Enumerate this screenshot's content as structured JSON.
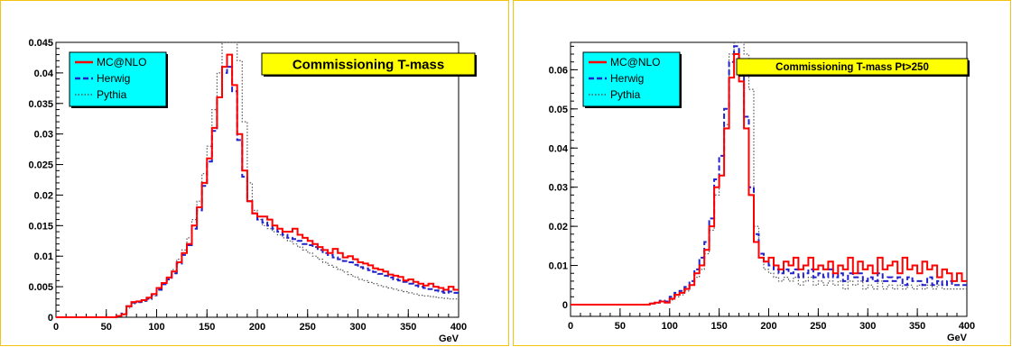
{
  "chart_data": [
    {
      "type": "line",
      "step": true,
      "title": "Commissioning T-mass",
      "xlabel": "GeV",
      "ylabel": "",
      "xlim": [
        0,
        400
      ],
      "ylim": [
        0,
        0.045
      ],
      "xticks": [
        "0",
        "50",
        "100",
        "150",
        "200",
        "250",
        "300",
        "350",
        "400"
      ],
      "yticks": [
        "0",
        "0.005",
        "0.01",
        "0.015",
        "0.02",
        "0.025",
        "0.03",
        "0.035",
        "0.04",
        "0.045"
      ],
      "legend_position": "top-left",
      "title_box_color": "#ffff00",
      "legend_box_color": "#00ffff",
      "x": [
        0,
        5,
        10,
        15,
        20,
        25,
        30,
        35,
        40,
        45,
        50,
        55,
        60,
        65,
        70,
        75,
        80,
        85,
        90,
        95,
        100,
        105,
        110,
        115,
        120,
        125,
        130,
        135,
        140,
        145,
        150,
        155,
        160,
        165,
        170,
        175,
        180,
        185,
        190,
        195,
        200,
        205,
        210,
        215,
        220,
        225,
        230,
        235,
        240,
        245,
        250,
        255,
        260,
        265,
        270,
        275,
        280,
        285,
        290,
        295,
        300,
        305,
        310,
        315,
        320,
        325,
        330,
        335,
        340,
        345,
        350,
        355,
        360,
        365,
        370,
        375,
        380,
        385,
        390,
        395
      ],
      "series": [
        {
          "name": "MC@NLO",
          "color": "#ff0000",
          "style": "solid",
          "values": [
            0,
            0,
            0,
            0,
            0,
            0,
            0,
            0,
            0,
            0,
            0,
            0,
            0.0002,
            0.0005,
            0.0018,
            0.0025,
            0.0026,
            0.0028,
            0.0032,
            0.0038,
            0.0048,
            0.0056,
            0.0065,
            0.0075,
            0.009,
            0.0105,
            0.012,
            0.015,
            0.018,
            0.022,
            0.026,
            0.031,
            0.036,
            0.041,
            0.043,
            0.038,
            0.03,
            0.024,
            0.019,
            0.017,
            0.0165,
            0.0165,
            0.016,
            0.015,
            0.0145,
            0.014,
            0.014,
            0.0145,
            0.0135,
            0.013,
            0.0125,
            0.012,
            0.0115,
            0.011,
            0.0105,
            0.0112,
            0.0105,
            0.0098,
            0.01,
            0.0095,
            0.009,
            0.0088,
            0.0085,
            0.008,
            0.0078,
            0.0075,
            0.007,
            0.0068,
            0.0066,
            0.006,
            0.0062,
            0.0058,
            0.0055,
            0.0052,
            0.0055,
            0.005,
            0.0048,
            0.0045,
            0.005,
            0.0045
          ]
        },
        {
          "name": "Herwig",
          "color": "#2222cc",
          "style": "dashed",
          "values": [
            0,
            0,
            0,
            0,
            0,
            0,
            0,
            0,
            0,
            0,
            0,
            0,
            0.0002,
            0.0006,
            0.0018,
            0.0024,
            0.0025,
            0.0027,
            0.003,
            0.0036,
            0.0045,
            0.0054,
            0.0062,
            0.0072,
            0.0088,
            0.0102,
            0.0118,
            0.0145,
            0.0175,
            0.0215,
            0.0255,
            0.0305,
            0.036,
            0.04,
            0.041,
            0.037,
            0.029,
            0.023,
            0.019,
            0.017,
            0.016,
            0.0155,
            0.015,
            0.0145,
            0.014,
            0.0135,
            0.013,
            0.0128,
            0.0125,
            0.012,
            0.0118,
            0.0115,
            0.011,
            0.0105,
            0.0102,
            0.0098,
            0.0095,
            0.0092,
            0.009,
            0.0086,
            0.0082,
            0.008,
            0.0077,
            0.0074,
            0.0071,
            0.0068,
            0.0065,
            0.0062,
            0.006,
            0.0058,
            0.0055,
            0.0052,
            0.005,
            0.0048,
            0.0046,
            0.0044,
            0.0042,
            0.004,
            0.0042,
            0.004
          ]
        },
        {
          "name": "Pythia",
          "color": "#555555",
          "style": "dotted",
          "values": [
            0,
            0,
            0,
            0,
            0,
            0,
            0,
            0,
            0,
            0,
            0,
            0,
            0.0002,
            0.0004,
            0.0015,
            0.0022,
            0.0024,
            0.0026,
            0.003,
            0.0035,
            0.0045,
            0.0055,
            0.0065,
            0.0078,
            0.0095,
            0.011,
            0.013,
            0.016,
            0.019,
            0.0235,
            0.028,
            0.034,
            0.04,
            0.046,
            0.047,
            0.046,
            0.042,
            0.032,
            0.022,
            0.0175,
            0.016,
            0.015,
            0.0145,
            0.014,
            0.0135,
            0.013,
            0.0125,
            0.012,
            0.0115,
            0.011,
            0.0105,
            0.01,
            0.0095,
            0.009,
            0.0085,
            0.0082,
            0.0078,
            0.0074,
            0.007,
            0.0066,
            0.0062,
            0.006,
            0.0057,
            0.0055,
            0.0052,
            0.005,
            0.0048,
            0.0046,
            0.0044,
            0.0042,
            0.004,
            0.0038,
            0.0036,
            0.0035,
            0.0034,
            0.0033,
            0.0032,
            0.0031,
            0.003,
            0.003
          ]
        }
      ]
    },
    {
      "type": "line",
      "step": true,
      "title": "Commissioning T-mass Pt>250",
      "xlabel": "GeV",
      "ylabel": "",
      "xlim": [
        0,
        400
      ],
      "ylim": [
        -0.003,
        0.067
      ],
      "xticks": [
        "0",
        "50",
        "100",
        "150",
        "200",
        "250",
        "300",
        "350",
        "400"
      ],
      "yticks": [
        "0",
        "0.01",
        "0.02",
        "0.03",
        "0.04",
        "0.05",
        "0.06"
      ],
      "legend_position": "top-left",
      "title_box_color": "#ffff00",
      "legend_box_color": "#00ffff",
      "x": [
        0,
        5,
        10,
        15,
        20,
        25,
        30,
        35,
        40,
        45,
        50,
        55,
        60,
        65,
        70,
        75,
        80,
        85,
        90,
        95,
        100,
        105,
        110,
        115,
        120,
        125,
        130,
        135,
        140,
        145,
        150,
        155,
        160,
        165,
        170,
        175,
        180,
        185,
        190,
        195,
        200,
        205,
        210,
        215,
        220,
        225,
        230,
        235,
        240,
        245,
        250,
        255,
        260,
        265,
        270,
        275,
        280,
        285,
        290,
        295,
        300,
        305,
        310,
        315,
        320,
        325,
        330,
        335,
        340,
        345,
        350,
        355,
        360,
        365,
        370,
        375,
        380,
        385,
        390,
        395
      ],
      "series": [
        {
          "name": "MC@NLO",
          "color": "#ff0000",
          "style": "solid",
          "values": [
            0,
            0,
            0,
            0,
            0,
            0,
            0,
            0,
            0,
            0,
            0,
            0,
            0,
            0,
            0,
            0,
            0.0003,
            0.0005,
            0.0008,
            0.0005,
            0.0015,
            0.0025,
            0.003,
            0.004,
            0.005,
            0.008,
            0.01,
            0.014,
            0.02,
            0.03,
            0.033,
            0.045,
            0.058,
            0.064,
            0.057,
            0.045,
            0.028,
            0.016,
            0.012,
            0.011,
            0.012,
            0.01,
            0.009,
            0.011,
            0.01,
            0.012,
            0.009,
            0.01,
            0.012,
            0.009,
            0.01,
            0.009,
            0.011,
            0.008,
            0.01,
            0.009,
            0.012,
            0.008,
            0.011,
            0.009,
            0.01,
            0.008,
            0.012,
            0.009,
            0.01,
            0.011,
            0.008,
            0.012,
            0.009,
            0.01,
            0.008,
            0.011,
            0.009,
            0.01,
            0.007,
            0.009,
            0.008,
            0.006,
            0.008,
            0.006
          ]
        },
        {
          "name": "Herwig",
          "color": "#2222cc",
          "style": "dashed",
          "values": [
            0,
            0,
            0,
            0,
            0,
            0,
            0,
            0,
            0,
            0,
            0,
            0,
            0,
            0,
            0,
            0,
            0.0003,
            0.0005,
            0.001,
            0.0008,
            0.002,
            0.003,
            0.0035,
            0.0045,
            0.006,
            0.009,
            0.012,
            0.016,
            0.022,
            0.032,
            0.038,
            0.05,
            0.062,
            0.066,
            0.062,
            0.048,
            0.03,
            0.018,
            0.013,
            0.011,
            0.01,
            0.009,
            0.008,
            0.009,
            0.008,
            0.009,
            0.007,
            0.008,
            0.009,
            0.007,
            0.008,
            0.007,
            0.009,
            0.007,
            0.008,
            0.006,
            0.008,
            0.007,
            0.008,
            0.006,
            0.007,
            0.006,
            0.008,
            0.006,
            0.007,
            0.006,
            0.007,
            0.005,
            0.007,
            0.006,
            0.006,
            0.005,
            0.007,
            0.005,
            0.006,
            0.005,
            0.006,
            0.005,
            0.005,
            0.005
          ]
        },
        {
          "name": "Pythia",
          "color": "#555555",
          "style": "dotted",
          "values": [
            0,
            0,
            0,
            0,
            0,
            0,
            0,
            0,
            0,
            0,
            0,
            0,
            0,
            0,
            0,
            0,
            0.0002,
            0.0004,
            0.0007,
            0.0005,
            0.0012,
            0.002,
            0.0025,
            0.0035,
            0.005,
            0.007,
            0.009,
            0.013,
            0.019,
            0.028,
            0.033,
            0.046,
            0.064,
            0.07,
            0.067,
            0.064,
            0.055,
            0.02,
            0.012,
            0.009,
            0.008,
            0.007,
            0.006,
            0.007,
            0.006,
            0.007,
            0.005,
            0.006,
            0.007,
            0.005,
            0.006,
            0.005,
            0.006,
            0.005,
            0.006,
            0.004,
            0.006,
            0.005,
            0.006,
            0.004,
            0.005,
            0.004,
            0.006,
            0.004,
            0.005,
            0.004,
            0.005,
            0.004,
            0.005,
            0.004,
            0.005,
            0.004,
            0.005,
            0.004,
            0.005,
            0.004,
            0.004,
            0.004,
            0.004,
            0.004
          ]
        }
      ]
    }
  ]
}
